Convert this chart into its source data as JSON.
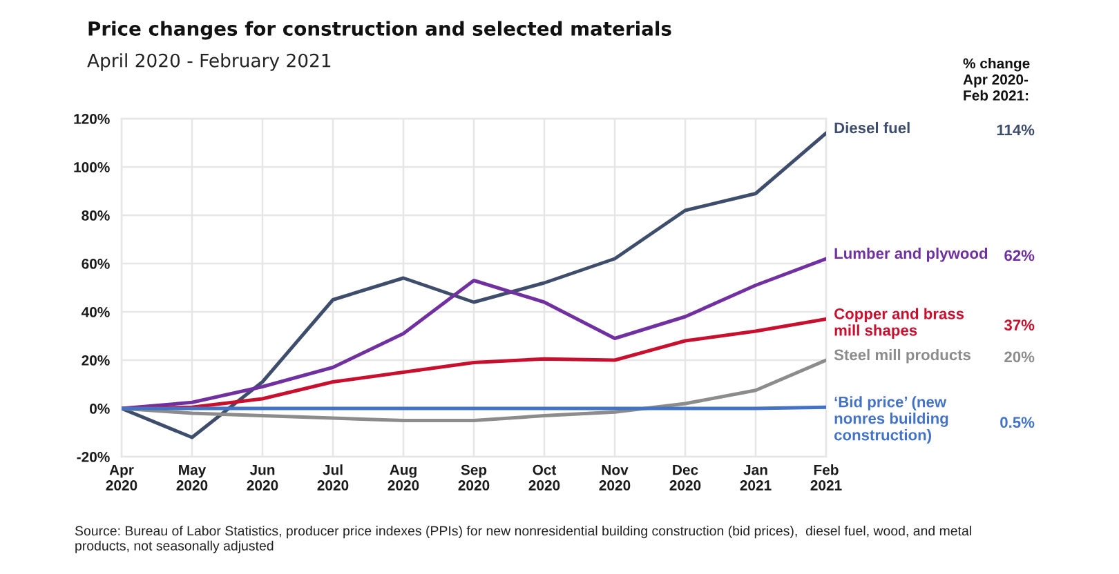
{
  "chart_data": {
    "type": "line",
    "title": "Price changes for construction and selected materials",
    "subtitle": "April 2020 - February 2021",
    "categories": [
      "Apr\n2020",
      "May\n2020",
      "Jun\n2020",
      "Jul\n2020",
      "Aug\n2020",
      "Sep\n2020",
      "Oct\n2020",
      "Nov\n2020",
      "Dec\n2020",
      "Jan\n2021",
      "Feb\n2021"
    ],
    "series": [
      {
        "name": "Diesel fuel",
        "color": "#3f4d6d",
        "values": [
          0,
          -12,
          11,
          45,
          54,
          44,
          52,
          62,
          82,
          89,
          114
        ]
      },
      {
        "name": "Lumber and plywood",
        "color": "#7030a0",
        "values": [
          0,
          2.5,
          9,
          17,
          31,
          53,
          44,
          29,
          38,
          51,
          62
        ]
      },
      {
        "name": "Copper and brass\nmill shapes",
        "color": "#c8102e",
        "values": [
          0,
          0.5,
          4,
          11,
          15,
          19,
          20.5,
          20,
          28,
          32,
          37
        ]
      },
      {
        "name": "Steel mill products",
        "color": "#8c8c8c",
        "values": [
          0,
          -2,
          -3,
          -4,
          -5,
          -5,
          -3,
          -1.5,
          2,
          7.5,
          20
        ]
      },
      {
        "name": "‘Bid price’ (new\nnonres building\nconstruction)",
        "color": "#4472c4",
        "values": [
          0,
          0,
          0,
          0,
          0,
          0,
          0,
          0,
          0,
          0,
          0.5
        ]
      }
    ],
    "ylim": [
      -20,
      120
    ],
    "yticks": [
      {
        "value": -20,
        "label": "-20%"
      },
      {
        "value": 0,
        "label": "0%"
      },
      {
        "value": 20,
        "label": "20%"
      },
      {
        "value": 40,
        "label": "40%"
      },
      {
        "value": 60,
        "label": "60%"
      },
      {
        "value": 80,
        "label": "80%"
      },
      {
        "value": 100,
        "label": "100%"
      },
      {
        "value": 120,
        "label": "120%"
      }
    ],
    "grid": true,
    "annotations": [
      "% change\nApr 2020-\nFeb 2021:",
      "114%",
      "62%",
      "37%",
      "20%",
      "0.5%",
      "Source: Bureau of Labor Statistics, producer price indexes (PPIs) for new nonresidential building construction (bid prices),  diesel fuel, wood, and metal\nproducts, not seasonally adjusted"
    ]
  }
}
